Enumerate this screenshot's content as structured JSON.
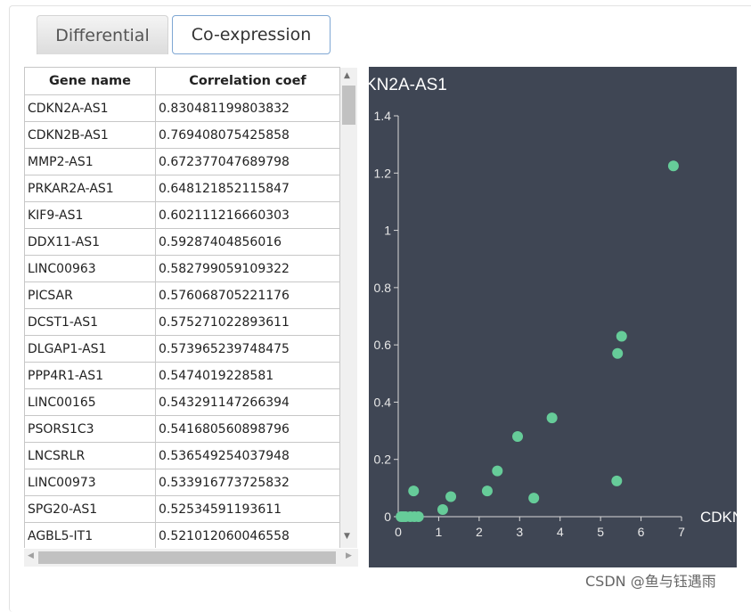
{
  "tabs": [
    {
      "label": "Differential"
    },
    {
      "label": "Co-expression"
    }
  ],
  "table": {
    "headers": [
      "Gene name",
      "Correlation coef"
    ],
    "rows": [
      [
        "CDKN2A-AS1",
        "0.830481199803832"
      ],
      [
        "CDKN2B-AS1",
        "0.769408075425858"
      ],
      [
        "MMP2-AS1",
        "0.672377047689798"
      ],
      [
        "PRKAR2A-AS1",
        "0.648121852115847"
      ],
      [
        "KIF9-AS1",
        "0.602111216660303"
      ],
      [
        "DDX11-AS1",
        "0.59287404856016"
      ],
      [
        "LINC00963",
        "0.582799059109322"
      ],
      [
        "PICSAR",
        "0.576068705221176"
      ],
      [
        "DCST1-AS1",
        "0.575271022893611"
      ],
      [
        "DLGAP1-AS1",
        "0.573965239748475"
      ],
      [
        "PPP4R1-AS1",
        "0.5474019228581"
      ],
      [
        "LINC00165",
        "0.543291147266394"
      ],
      [
        "PSORS1C3",
        "0.541680560898796"
      ],
      [
        "LNCSRLR",
        "0.536549254037948"
      ],
      [
        "LINC00973",
        "0.533916773725832"
      ],
      [
        "SPG20-AS1",
        "0.52534591193611"
      ],
      [
        "AGBL5-IT1",
        "0.521012060046558"
      ]
    ]
  },
  "chart_data": {
    "type": "scatter",
    "title": "KN2A-AS1",
    "xlabel": "CDKN",
    "xlim": [
      0,
      7
    ],
    "ylim": [
      0,
      1.4
    ],
    "xticks": [
      "0",
      "1",
      "2",
      "3",
      "4",
      "5",
      "6",
      "7"
    ],
    "yticks": [
      "0",
      "0.2",
      "0.4",
      "0.6",
      "0.8",
      "1",
      "1.2",
      "1.4"
    ],
    "point_color": "#66cc99",
    "x": [
      0.07,
      0.12,
      0.18,
      0.3,
      0.4,
      0.5,
      0.38,
      1.1,
      1.3,
      2.2,
      2.45,
      2.95,
      3.35,
      3.8,
      5.4,
      5.42,
      5.52,
      6.8
    ],
    "y": [
      0.0,
      0.0,
      0.0,
      0.0,
      0.0,
      0.0,
      0.09,
      0.025,
      0.07,
      0.09,
      0.16,
      0.28,
      0.065,
      0.345,
      0.125,
      0.57,
      0.63,
      1.225
    ]
  },
  "watermark": "CSDN @鱼与钰遇雨"
}
